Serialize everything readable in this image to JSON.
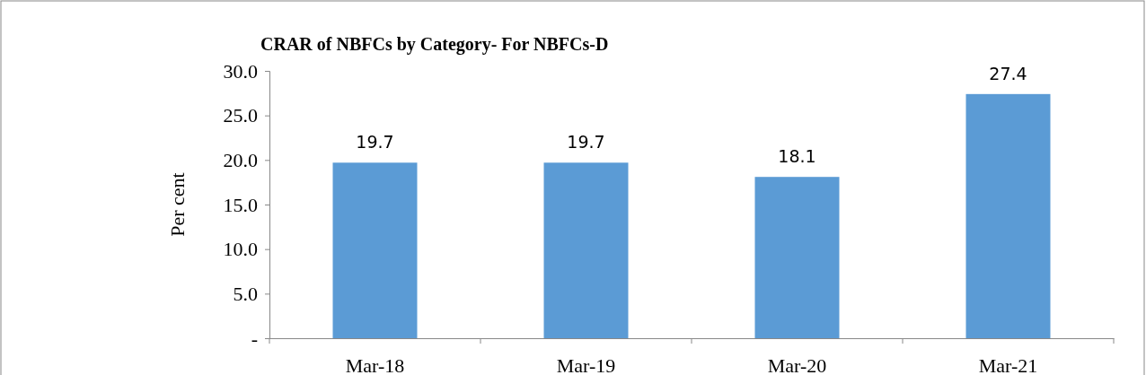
{
  "chart_data": {
    "type": "bar",
    "title": "CRAR of NBFCs by Category- For NBFCs-D",
    "ylabel": "Per cent",
    "categories": [
      "Mar-18",
      "Mar-19",
      "Mar-20",
      "Mar-21"
    ],
    "values": [
      19.7,
      19.7,
      18.1,
      27.4
    ],
    "color": "#5b9bd5",
    "data_labels": true,
    "ylim": [
      0,
      30
    ],
    "yticks": [
      {
        "value": 0,
        "label": "-"
      },
      {
        "value": 5,
        "label": "5.0"
      },
      {
        "value": 10,
        "label": "10.0"
      },
      {
        "value": 15,
        "label": "15.0"
      },
      {
        "value": 20,
        "label": "20.0"
      },
      {
        "value": 25,
        "label": "25.0"
      },
      {
        "value": 30,
        "label": "30.0"
      }
    ],
    "grid": false
  }
}
